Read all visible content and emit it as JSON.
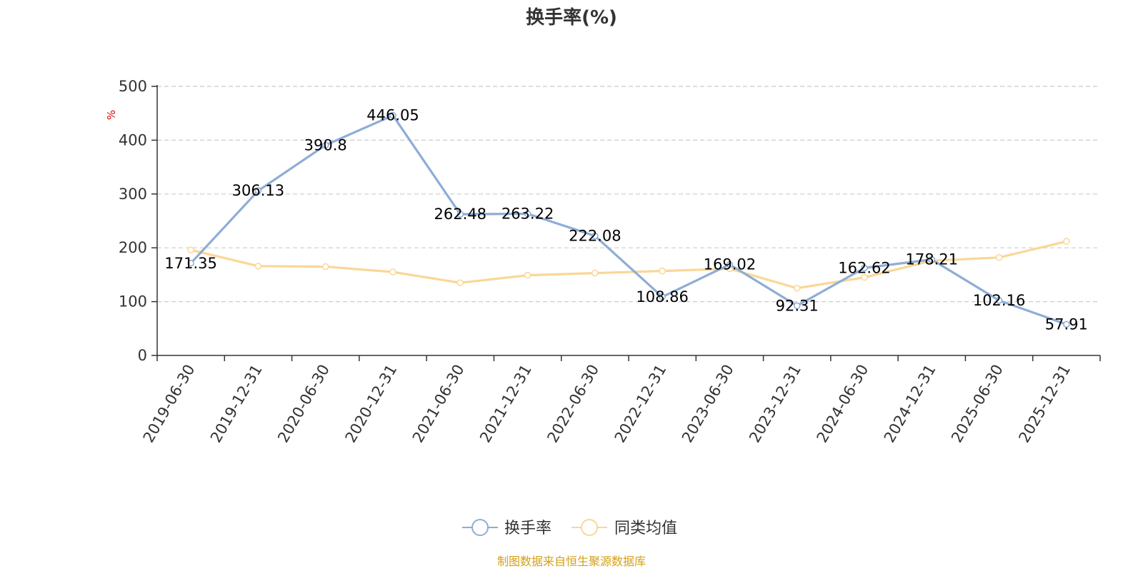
{
  "chart_data": {
    "type": "line",
    "title": "换手率(%)",
    "ylabel": "%",
    "ylim": [
      0,
      500
    ],
    "yticks": [
      0,
      100,
      200,
      300,
      400,
      500
    ],
    "grid": true,
    "legend_position": "bottom-center",
    "categories": [
      "2019-06-30",
      "2019-12-31",
      "2020-06-30",
      "2020-12-31",
      "2021-06-30",
      "2021-12-31",
      "2022-06-30",
      "2022-12-31",
      "2023-06-30",
      "2023-12-31",
      "2024-06-30",
      "2024-12-31",
      "2025-06-30",
      "2025-12-31"
    ],
    "series": [
      {
        "name": "换手率",
        "color": "#8eadd6",
        "values": [
          171.35,
          306.13,
          390.8,
          446.05,
          262.48,
          263.22,
          222.08,
          108.86,
          169.02,
          92.31,
          162.62,
          178.21,
          102.16,
          57.91
        ],
        "labels": [
          "171.35",
          "306.13",
          "390.8",
          "446.05",
          "262.48",
          "263.22",
          "222.08",
          "108.86",
          "169.02",
          "92.31",
          "162.62",
          "178.21",
          "102.16",
          "57.91"
        ]
      },
      {
        "name": "同类均值",
        "color": "#fad796",
        "values": [
          196,
          166,
          165,
          155,
          135,
          149,
          153,
          157,
          161,
          125,
          145,
          176,
          182,
          212
        ]
      }
    ],
    "source": "制图数据来自恒生聚源数据库"
  }
}
